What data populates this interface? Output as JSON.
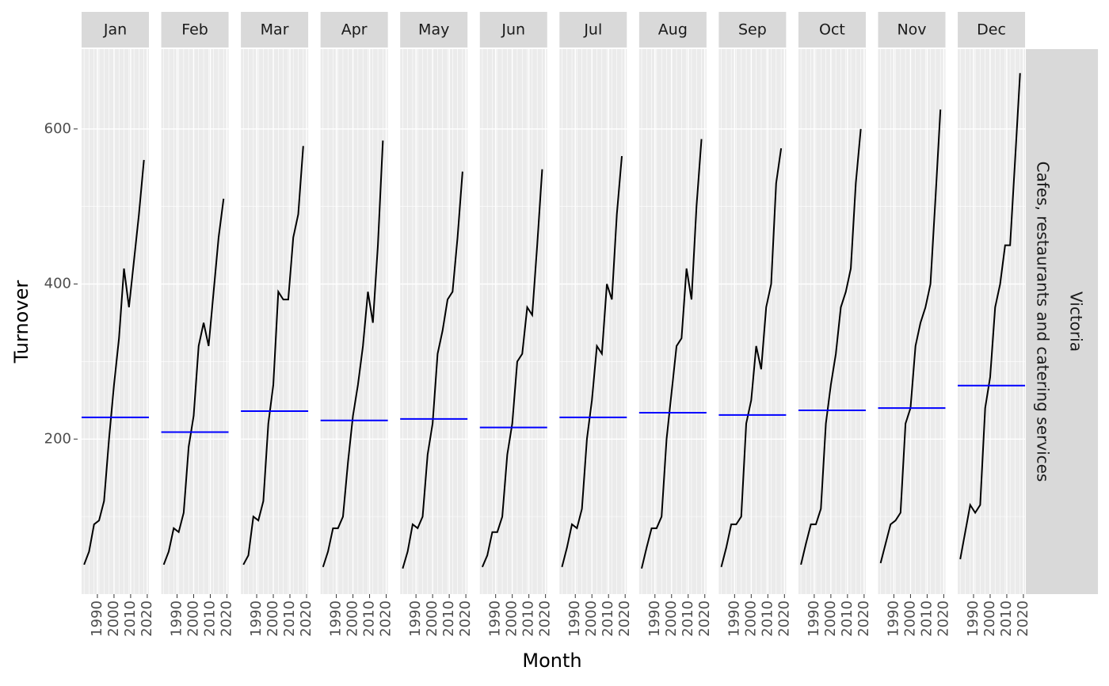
{
  "chart_data": {
    "type": "line",
    "x_label": "Month",
    "y_label": "Turnover",
    "strips_right": [
      "Victoria",
      "Cafes, restaurants and catering services"
    ],
    "x": [
      1982,
      1985,
      1988,
      1991,
      1994,
      1997,
      2000,
      2003,
      2006,
      2009,
      2012,
      2015,
      2018
    ],
    "xlim": [
      1980.5,
      2021
    ],
    "xticks": [
      1990,
      2000,
      2010,
      2020
    ],
    "ylim": [
      0,
      703
    ],
    "yticks": [
      200,
      400,
      600
    ],
    "line_color": "#000000",
    "mean_color": "#0000ff",
    "grid": true,
    "panels": [
      {
        "name": "Jan",
        "values": [
          38,
          55,
          90,
          95,
          120,
          200,
          270,
          330,
          420,
          370,
          430,
          490,
          560
        ],
        "mean": 228
      },
      {
        "name": "Feb",
        "values": [
          38,
          55,
          85,
          80,
          105,
          190,
          230,
          320,
          350,
          320,
          390,
          460,
          510
        ],
        "mean": 209
      },
      {
        "name": "Mar",
        "values": [
          38,
          50,
          100,
          95,
          120,
          220,
          270,
          390,
          380,
          380,
          460,
          490,
          578
        ],
        "mean": 236
      },
      {
        "name": "Apr",
        "values": [
          35,
          55,
          85,
          85,
          100,
          170,
          230,
          270,
          320,
          390,
          350,
          450,
          585
        ],
        "mean": 224
      },
      {
        "name": "May",
        "values": [
          33,
          55,
          90,
          85,
          100,
          180,
          220,
          310,
          340,
          380,
          390,
          460,
          545
        ],
        "mean": 226
      },
      {
        "name": "Jun",
        "values": [
          35,
          50,
          80,
          80,
          100,
          180,
          220,
          300,
          310,
          370,
          360,
          450,
          548
        ],
        "mean": 215
      },
      {
        "name": "Jul",
        "values": [
          35,
          60,
          90,
          85,
          110,
          200,
          250,
          320,
          310,
          400,
          380,
          490,
          565
        ],
        "mean": 228
      },
      {
        "name": "Aug",
        "values": [
          33,
          60,
          85,
          85,
          100,
          200,
          260,
          320,
          330,
          420,
          380,
          500,
          587
        ],
        "mean": 234
      },
      {
        "name": "Sep",
        "values": [
          35,
          60,
          90,
          90,
          100,
          220,
          250,
          320,
          290,
          370,
          400,
          530,
          575
        ],
        "mean": 231
      },
      {
        "name": "Oct",
        "values": [
          38,
          65,
          90,
          90,
          110,
          220,
          270,
          310,
          370,
          390,
          420,
          530,
          600
        ],
        "mean": 237
      },
      {
        "name": "Nov",
        "values": [
          40,
          65,
          90,
          95,
          105,
          220,
          240,
          320,
          350,
          370,
          400,
          510,
          625
        ],
        "mean": 240
      },
      {
        "name": "Dec",
        "values": [
          45,
          80,
          115,
          105,
          115,
          240,
          280,
          370,
          400,
          450,
          450,
          560,
          672
        ],
        "mean": 269
      }
    ]
  }
}
